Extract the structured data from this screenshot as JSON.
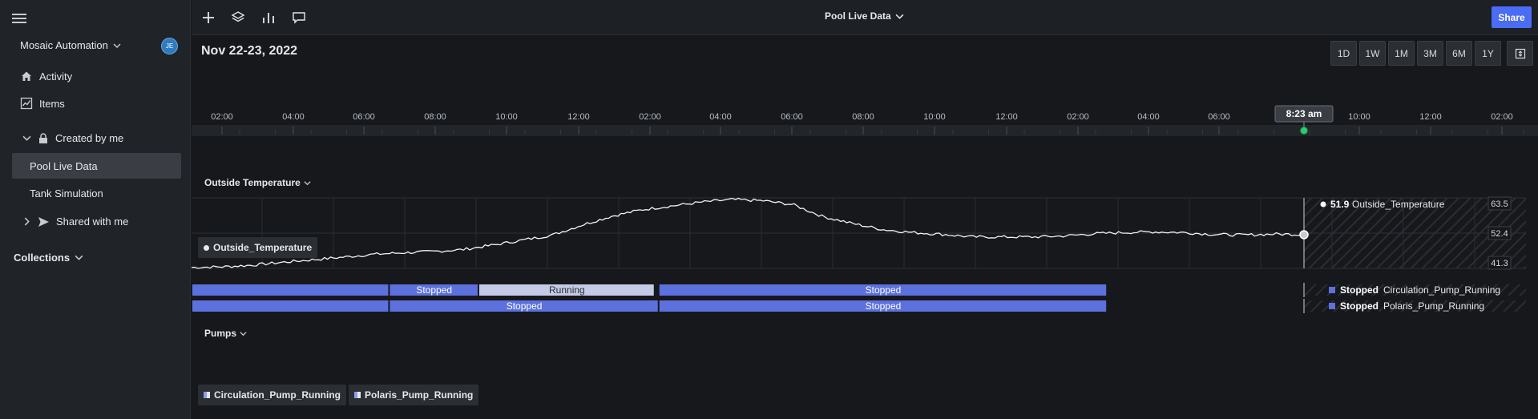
{
  "sidebar": {
    "workspace_name": "Mosaic Automation",
    "avatar_initials": "JE",
    "nav": [
      {
        "label": "Activity",
        "icon": "home-icon"
      },
      {
        "label": "Items",
        "icon": "chart-line-icon"
      }
    ],
    "created_by_me": "Created by me",
    "files": [
      "Pool Live Data",
      "Tank Simulation"
    ],
    "shared_with_me": "Shared with me",
    "collections": "Collections"
  },
  "topbar": {
    "title": "Pool Live Data",
    "share_label": "Share"
  },
  "main": {
    "date_title": "Nov 22-23, 2022",
    "ranges": [
      "1D",
      "1W",
      "1M",
      "3M",
      "6M",
      "1Y"
    ],
    "timeline_ticks": [
      "02:00",
      "04:00",
      "06:00",
      "08:00",
      "10:00",
      "12:00",
      "02:00",
      "04:00",
      "06:00",
      "08:00",
      "10:00",
      "12:00",
      "02:00",
      "04:00",
      "06:00",
      "10:00",
      "12:00",
      "02:00"
    ],
    "cursor_time": "8:23 am"
  },
  "colors": {
    "accent": "#4a6cf7",
    "stopped": "#5c70de",
    "running": "#c5cbe6",
    "cursor_dot": "#2ecc71"
  },
  "chart_data": [
    {
      "type": "line",
      "title": "Outside Temperature",
      "series": [
        {
          "name": "Outside_Temperature",
          "values": [
            41.6,
            41.8,
            42.3,
            43.2,
            44.0,
            44.8,
            45.7,
            46.2,
            46.6,
            47.2,
            48.6,
            50.2,
            51.8,
            55.0,
            57.8,
            59.8,
            61.0,
            62.2,
            63.0,
            62.6,
            61.4,
            57.6,
            55.4,
            53.5,
            52.6,
            52.0,
            51.2,
            51.2,
            51.2,
            51.5,
            52.2,
            52.6,
            52.8,
            52.6,
            52.0,
            51.8,
            52.1,
            52.0
          ]
        }
      ],
      "y_ticks": [
        "63.5",
        "52.4",
        "41.3"
      ],
      "ylim": [
        41.3,
        63.5
      ],
      "current_value": "51.9",
      "current_label": "Outside_Temperature"
    },
    {
      "type": "state-timeline",
      "title": "Pumps",
      "series": [
        {
          "name": "Circulation_Pump_Running",
          "current": "Stopped",
          "segments": [
            {
              "state": "Stopped",
              "start": 0.0,
              "end": 0.148,
              "label": ""
            },
            {
              "state": "Stopped",
              "start": 0.148,
              "end": 0.215,
              "label": "Stopped"
            },
            {
              "state": "Running",
              "start": 0.215,
              "end": 0.347,
              "label": "Running"
            },
            {
              "state": "Stopped",
              "start": 0.35,
              "end": 0.686,
              "label": "Stopped"
            }
          ]
        },
        {
          "name": "Polaris_Pump_Running",
          "current": "Stopped",
          "segments": [
            {
              "state": "Stopped",
              "start": 0.0,
              "end": 0.148,
              "label": ""
            },
            {
              "state": "Stopped",
              "start": 0.148,
              "end": 0.35,
              "label": "Stopped"
            },
            {
              "state": "Stopped",
              "start": 0.35,
              "end": 0.686,
              "label": "Stopped"
            }
          ]
        }
      ]
    }
  ]
}
